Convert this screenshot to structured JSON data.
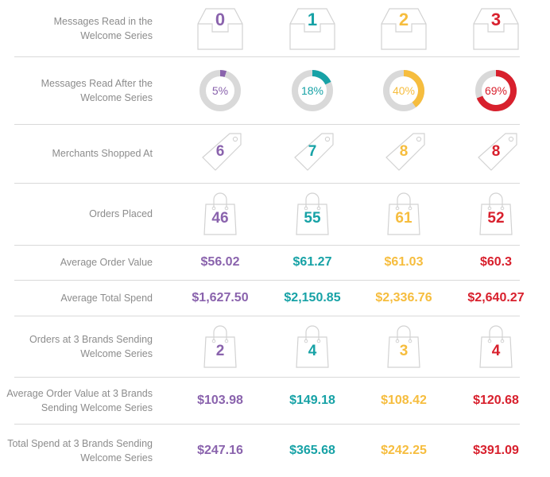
{
  "colors": {
    "segments": [
      "#8a63ad",
      "#17a2a6",
      "#f6bd3e",
      "#d8202d"
    ],
    "track": "#d9d9d9",
    "icon_stroke": "#d2d2d2",
    "label": "#8c8c8c"
  },
  "segments": [
    {
      "name": "purple",
      "color": "#8a63ad"
    },
    {
      "name": "teal",
      "color": "#17a2a6"
    },
    {
      "name": "yellow",
      "color": "#f6bd3e"
    },
    {
      "name": "red",
      "color": "#d8202d"
    }
  ],
  "rows": [
    {
      "label": "Messages Read in the Welcome Series",
      "icon": "inbox-tray-icon",
      "values": [
        "0",
        "1",
        "2",
        "3"
      ]
    },
    {
      "label": "Messages Read After the Welcome Series",
      "icon": "donut-chart",
      "values": [
        "5%",
        "18%",
        "40%",
        "69%"
      ],
      "fractions": [
        0.05,
        0.18,
        0.4,
        0.69
      ]
    },
    {
      "label": "Merchants Shopped At",
      "icon": "price-tag-icon",
      "values": [
        "6",
        "7",
        "8",
        "8"
      ]
    },
    {
      "label": "Orders Placed",
      "icon": "shopping-bag-icon",
      "values": [
        "46",
        "55",
        "61",
        "52"
      ]
    },
    {
      "label": "Average Order Value",
      "icon": "",
      "values": [
        "$56.02",
        "$61.27",
        "$61.03",
        "$60.3"
      ]
    },
    {
      "label": "Average Total Spend",
      "icon": "",
      "values": [
        "$1,627.50",
        "$2,150.85",
        "$2,336.76",
        "$2,640.27"
      ]
    },
    {
      "label": "Orders at 3 Brands Sending Welcome Series",
      "icon": "shopping-bag-icon",
      "values": [
        "2",
        "4",
        "3",
        "4"
      ]
    },
    {
      "label": "Average Order Value at 3 Brands Sending Welcome Series",
      "icon": "",
      "values": [
        "$103.98",
        "$149.18",
        "$108.42",
        "$120.68"
      ]
    },
    {
      "label": "Total Spend at 3 Brands Sending Welcome Series",
      "icon": "",
      "values": [
        "$247.16",
        "$365.68",
        "$242.25",
        "$391.09"
      ]
    }
  ],
  "label_lines": [
    [
      "Messages Read in the",
      "Welcome Series"
    ],
    [
      "Messages Read After the",
      "Welcome Series"
    ],
    [
      "Merchants Shopped At"
    ],
    [
      "Orders Placed"
    ],
    [
      "Average Order Value"
    ],
    [
      "Average Total Spend"
    ],
    [
      "Orders at 3 Brands Sending",
      "Welcome Series"
    ],
    [
      "Average Order Value at 3 Brands",
      "Sending Welcome Series"
    ],
    [
      "Total Spend at 3 Brands Sending",
      "Welcome Series"
    ]
  ]
}
